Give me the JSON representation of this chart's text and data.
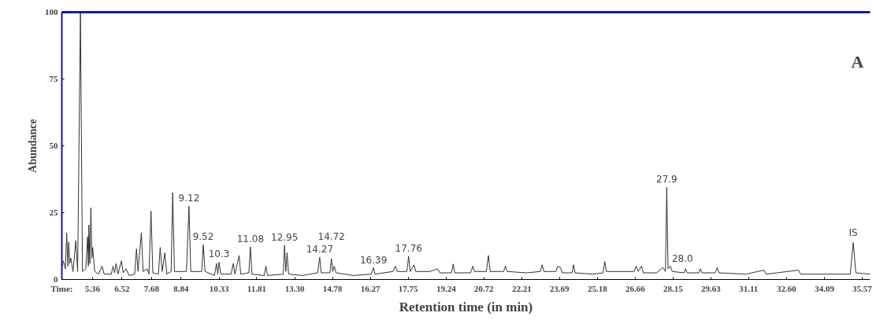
{
  "chart_data": {
    "type": "line",
    "xlabel": "Retention time (in min)",
    "ylabel": "Abundance",
    "xlim": [
      4.16,
      35.88
    ],
    "ylim": [
      0,
      100
    ],
    "xticks": [
      5.36,
      6.52,
      7.68,
      8.84,
      10.33,
      11.81,
      {
        "value": 13.3,
        "label": "13.30"
      },
      14.78,
      16.27,
      17.75,
      19.24,
      20.72,
      22.21,
      23.69,
      25.18,
      26.66,
      28.15,
      29.63,
      31.11,
      {
        "value": 32.6,
        "label": "32.60"
      },
      34.09,
      35.57
    ],
    "yticks": [
      0,
      25,
      50,
      75,
      100
    ],
    "grid": false,
    "marker": "none",
    "line_style": "solid",
    "series": [
      {
        "color": "#333333",
        "x": [
          4.18,
          4.22,
          4.3,
          4.35,
          4.4,
          4.43,
          4.47,
          4.51,
          4.6,
          4.71,
          4.78,
          4.89,
          4.97,
          5.1,
          5.17,
          5.2,
          5.22,
          5.26,
          5.3,
          5.34,
          5.37,
          5.45,
          5.6,
          5.74,
          5.82,
          6.1,
          6.17,
          6.23,
          6.29,
          6.36,
          6.5,
          6.57,
          6.68,
          6.8,
          7.02,
          7.09,
          7.15,
          7.28,
          7.35,
          7.51,
          7.58,
          7.66,
          7.73,
          7.95,
          8.02,
          8.1,
          8.2,
          8.28,
          8.45,
          8.51,
          8.58,
          9.05,
          9.15,
          9.22,
          9.65,
          9.71,
          9.78,
          10.15,
          10.23,
          10.28,
          10.33,
          10.4,
          10.8,
          10.89,
          10.95,
          11.12,
          11.18,
          11.5,
          11.56,
          11.62,
          12.1,
          12.17,
          12.23,
          12.85,
          12.9,
          12.95,
          13.0,
          13.06,
          13.6,
          14.2,
          14.28,
          14.34,
          14.68,
          14.74,
          14.79,
          14.85,
          14.92,
          15.6,
          16.3,
          16.39,
          16.45,
          17.15,
          17.25,
          17.32,
          17.7,
          17.77,
          17.83,
          17.98,
          18.05,
          18.6,
          18.9,
          19.0,
          19.45,
          19.52,
          19.58,
          20.2,
          20.29,
          20.35,
          20.82,
          20.9,
          20.97,
          21.5,
          21.57,
          21.64,
          22.4,
          22.94,
          23.01,
          23.08,
          23.55,
          23.62,
          23.72,
          23.8,
          24.18,
          24.24,
          24.3,
          25.0,
          25.4,
          25.47,
          25.53,
          26.62,
          26.7,
          26.78,
          26.91,
          26.98,
          27.5,
          27.75,
          27.85,
          27.9,
          27.95,
          28.04,
          28.12,
          28.58,
          28.64,
          28.7,
          29.16,
          29.22,
          29.28,
          29.8,
          29.88,
          29.95,
          31.0,
          31.72,
          31.8,
          33.07,
          33.15,
          35.1,
          35.22,
          35.32,
          35.88
        ],
        "values": [
          5,
          7,
          4,
          17.5,
          5,
          14,
          6,
          8,
          3,
          14.6,
          3,
          100,
          3,
          4,
          16,
          5,
          20.4,
          6,
          26.8,
          8,
          12,
          3,
          2,
          5,
          2,
          2,
          5,
          2.5,
          6,
          2,
          7,
          2.5,
          4,
          1.5,
          2,
          11.5,
          3,
          17.5,
          3,
          4,
          2,
          25.6,
          2.5,
          2,
          12,
          3,
          10,
          2,
          3,
          32.5,
          3,
          3,
          27.4,
          3,
          3,
          13,
          3,
          1.5,
          6,
          2,
          6.5,
          2,
          2,
          6,
          2,
          9,
          2,
          2.5,
          12.2,
          2,
          1.5,
          5,
          1.5,
          2,
          12.8,
          3,
          10,
          2,
          1.5,
          2.5,
          8.3,
          2.5,
          2.5,
          7.8,
          3,
          5,
          2.5,
          1.5,
          2,
          4.4,
          2,
          3,
          5,
          3,
          3,
          8.7,
          3,
          5.5,
          3,
          3,
          4,
          2.5,
          2.5,
          5.8,
          2.5,
          2.5,
          5,
          3,
          3,
          9,
          3,
          3,
          5,
          3,
          2.5,
          3,
          5.5,
          3,
          3,
          5,
          4.5,
          2.5,
          2.5,
          5.5,
          2.5,
          2,
          2.5,
          6.7,
          3,
          3,
          5,
          3,
          5,
          2.5,
          2.5,
          4.5,
          3,
          34.5,
          4,
          5,
          3,
          2.5,
          4,
          2.5,
          2.5,
          4,
          2.5,
          2.5,
          4.5,
          2.5,
          2,
          3.5,
          2,
          3.5,
          2,
          2,
          13.8,
          2.5,
          2
        ]
      }
    ],
    "annotations": [
      "Time:",
      "A",
      {
        "text": "9.12",
        "x": 9.15,
        "y": 27.4
      },
      {
        "text": "9.52",
        "x": 9.71,
        "y": 13
      },
      {
        "text": "10.3",
        "x": 10.33,
        "y": 6.5
      },
      {
        "text": "11.08",
        "x": 11.56,
        "y": 12.2
      },
      {
        "text": "12.95",
        "x": 12.9,
        "y": 12.8
      },
      {
        "text": "14.27",
        "x": 14.28,
        "y": 8.3
      },
      {
        "text": "14.72",
        "x": 14.74,
        "y": 7.8
      },
      {
        "text": "16.39",
        "x": 16.39,
        "y": 4.4
      },
      {
        "text": "17.76",
        "x": 17.77,
        "y": 8.7
      },
      {
        "text": "27.9",
        "x": 27.9,
        "y": 34.5
      },
      {
        "text": "28.0",
        "x": 28.04,
        "y": 5
      },
      {
        "text": "IS",
        "x": 35.22,
        "y": 13.8
      }
    ]
  }
}
